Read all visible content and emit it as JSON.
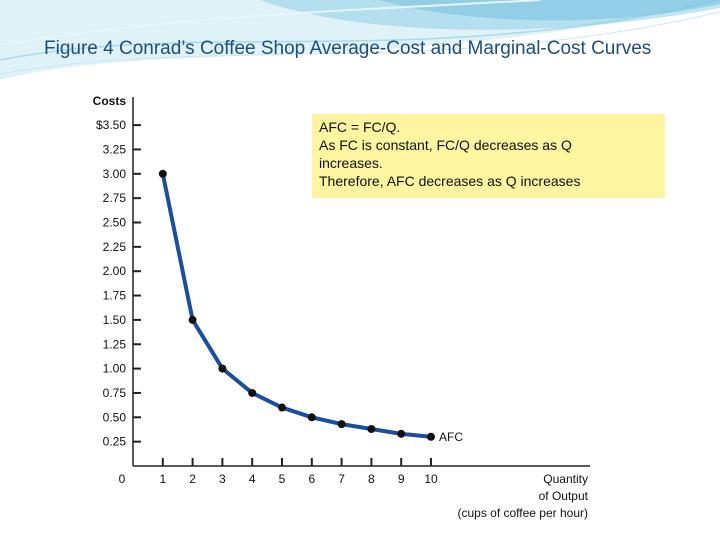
{
  "slide": {
    "title": "Figure 4 Conrad’s Coffee Shop Average-Cost and Marginal-Cost Curves",
    "colors": {
      "title": "#1f4e79",
      "swoosh": "#8fd0e8",
      "curve": "#1a4f9e",
      "note_bg": "#fdf5a0"
    }
  },
  "annotation": {
    "lines": [
      "AFC = FC/Q.",
      "As FC is constant, FC/Q decreases as Q",
      "increases.",
      "Therefore, AFC decreases as Q increases"
    ]
  },
  "chart_data": {
    "type": "line",
    "ylabel": "Costs",
    "xlabel_lines": [
      "Quantity",
      "of Output",
      "(cups of coffee per hour)"
    ],
    "y_ticks": [
      {
        "v": 0.25,
        "label": "0.25"
      },
      {
        "v": 0.5,
        "label": "0.50"
      },
      {
        "v": 0.75,
        "label": "0.75"
      },
      {
        "v": 1.0,
        "label": "1.00"
      },
      {
        "v": 1.25,
        "label": "1.25"
      },
      {
        "v": 1.5,
        "label": "1.50"
      },
      {
        "v": 1.75,
        "label": "1.75"
      },
      {
        "v": 2.0,
        "label": "2.00"
      },
      {
        "v": 2.25,
        "label": "2.25"
      },
      {
        "v": 2.5,
        "label": "2.50"
      },
      {
        "v": 2.75,
        "label": "2.75"
      },
      {
        "v": 3.0,
        "label": "3.00"
      },
      {
        "v": 3.25,
        "label": "3.25"
      },
      {
        "v": 3.5,
        "label": "$3.50"
      }
    ],
    "x_ticks": [
      0,
      1,
      2,
      3,
      4,
      5,
      6,
      7,
      8,
      9,
      10
    ],
    "xlim": [
      0,
      10
    ],
    "ylim": [
      0,
      3.5
    ],
    "series": [
      {
        "name": "AFC",
        "x": [
          1,
          2,
          3,
          4,
          5,
          6,
          7,
          8,
          9,
          10
        ],
        "y": [
          3.0,
          1.5,
          1.0,
          0.75,
          0.6,
          0.5,
          0.43,
          0.38,
          0.33,
          0.3
        ]
      }
    ]
  }
}
